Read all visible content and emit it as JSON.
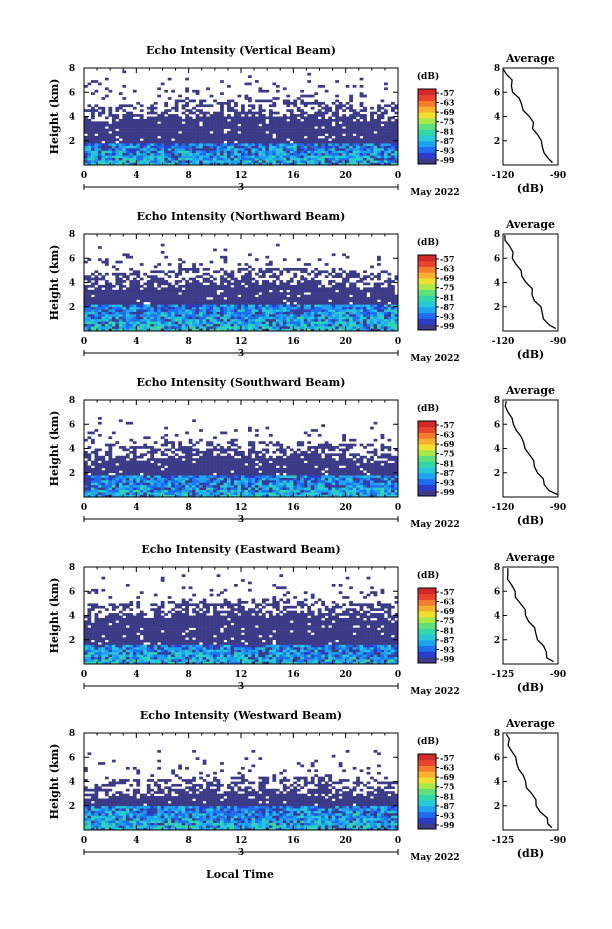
{
  "figure": {
    "xlabel": "Local Time",
    "colormap": [
      "#3b3b87",
      "#2b3cc8",
      "#1f6ef0",
      "#1ea2f2",
      "#28c8d8",
      "#33d6a8",
      "#5fe07a",
      "#a8e84a",
      "#f0e030",
      "#f9b030",
      "#f57c2c",
      "#e9452e",
      "#d12a2a"
    ]
  },
  "chart_data": [
    {
      "type": "heatmap",
      "title": "Echo Intensity (Vertical Beam)",
      "ylabel": "Height (km)",
      "yticks": [
        "2",
        "4",
        "6",
        "8"
      ],
      "ylim": [
        0,
        8
      ],
      "xticks": [
        "0",
        "4",
        "8",
        "12",
        "16",
        "20",
        "0"
      ],
      "xlim": [
        0,
        24
      ],
      "date_mark": "3",
      "date_label": "May 2022",
      "colorbar": {
        "unit": "(dB)",
        "ticks": [
          "-57",
          "-63",
          "-69",
          "-75",
          "-81",
          "-87",
          "-93",
          "-99"
        ]
      },
      "profile": {
        "title": "Average",
        "xlabel": "(dB)",
        "xticks": [
          "-120",
          "-90"
        ],
        "xlim": [
          -120,
          -90
        ],
        "yticks": [
          "2",
          "4",
          "6",
          "8"
        ],
        "ylim": [
          0,
          8
        ],
        "points": [
          [
            -93,
            0.2
          ],
          [
            -96,
            0.5
          ],
          [
            -97,
            1.0
          ],
          [
            -98,
            1.5
          ],
          [
            -100,
            2.0
          ],
          [
            -101,
            2.5
          ],
          [
            -103,
            3.0
          ],
          [
            -104,
            3.5
          ],
          [
            -106,
            4.0
          ],
          [
            -108,
            4.5
          ],
          [
            -110,
            5.0
          ],
          [
            -112,
            5.5
          ],
          [
            -114,
            6.0
          ],
          [
            -115,
            6.5
          ],
          [
            -116,
            7.0
          ],
          [
            -118,
            7.5
          ],
          [
            -119,
            7.9
          ]
        ]
      }
    },
    {
      "type": "heatmap",
      "title": "Echo Intensity (Northward Beam)",
      "ylabel": "Height (km)",
      "yticks": [
        "2",
        "4",
        "6",
        "8"
      ],
      "ylim": [
        0,
        8
      ],
      "xticks": [
        "0",
        "4",
        "8",
        "12",
        "16",
        "20",
        "0"
      ],
      "xlim": [
        0,
        24
      ],
      "date_mark": "3",
      "date_label": "May 2022",
      "colorbar": {
        "unit": "(dB)",
        "ticks": [
          "-57",
          "-63",
          "-69",
          "-75",
          "-81",
          "-87",
          "-93",
          "-99"
        ]
      },
      "profile": {
        "title": "Average",
        "xlabel": "(dB)",
        "xticks": [
          "-120",
          "-90"
        ],
        "xlim": [
          -120,
          -90
        ],
        "yticks": [
          "2",
          "4",
          "6",
          "8"
        ],
        "ylim": [
          0,
          8
        ],
        "points": [
          [
            -92,
            0.2
          ],
          [
            -95,
            0.5
          ],
          [
            -97,
            1.0
          ],
          [
            -99,
            1.5
          ],
          [
            -100,
            2.0
          ],
          [
            -102,
            2.5
          ],
          [
            -104,
            3.0
          ],
          [
            -105,
            3.5
          ],
          [
            -107,
            4.0
          ],
          [
            -109,
            4.5
          ],
          [
            -111,
            5.0
          ],
          [
            -113,
            5.5
          ],
          [
            -114,
            6.0
          ],
          [
            -115,
            6.5
          ],
          [
            -117,
            7.0
          ],
          [
            -118,
            7.5
          ],
          [
            -119,
            7.9
          ]
        ]
      }
    },
    {
      "type": "heatmap",
      "title": "Echo Intensity (Southward Beam)",
      "ylabel": "Height (km)",
      "yticks": [
        "2",
        "4",
        "6",
        "8"
      ],
      "ylim": [
        0,
        8
      ],
      "xticks": [
        "0",
        "4",
        "8",
        "12",
        "16",
        "20",
        "0"
      ],
      "xlim": [
        0,
        24
      ],
      "date_mark": "3",
      "date_label": "May 2022",
      "colorbar": {
        "unit": "(dB)",
        "ticks": [
          "-57",
          "-63",
          "-69",
          "-75",
          "-81",
          "-87",
          "-93",
          "-99"
        ]
      },
      "profile": {
        "title": "Average",
        "xlabel": "(dB)",
        "xticks": [
          "-120",
          "-90"
        ],
        "xlim": [
          -120,
          -90
        ],
        "yticks": [
          "2",
          "4",
          "6",
          "8"
        ],
        "ylim": [
          0,
          8
        ],
        "points": [
          [
            -91,
            0.2
          ],
          [
            -94,
            0.5
          ],
          [
            -97,
            1.0
          ],
          [
            -99,
            1.5
          ],
          [
            -101,
            2.0
          ],
          [
            -102,
            2.5
          ],
          [
            -104,
            3.0
          ],
          [
            -106,
            3.5
          ],
          [
            -107,
            4.0
          ],
          [
            -109,
            4.5
          ],
          [
            -111,
            5.0
          ],
          [
            -112,
            5.5
          ],
          [
            -114,
            6.0
          ],
          [
            -116,
            6.5
          ],
          [
            -117,
            7.0
          ],
          [
            -118,
            7.5
          ],
          [
            -119,
            7.9
          ]
        ]
      }
    },
    {
      "type": "heatmap",
      "title": "Echo Intensity (Eastward Beam)",
      "ylabel": "Height (km)",
      "yticks": [
        "2",
        "4",
        "6",
        "8"
      ],
      "ylim": [
        0,
        8
      ],
      "xticks": [
        "0",
        "4",
        "8",
        "12",
        "16",
        "20",
        "0"
      ],
      "xlim": [
        0,
        24
      ],
      "date_mark": "3",
      "date_label": "May 2022",
      "colorbar": {
        "unit": "(dB)",
        "ticks": [
          "-57",
          "-63",
          "-69",
          "-75",
          "-81",
          "-87",
          "-93",
          "-99"
        ]
      },
      "profile": {
        "title": "Average",
        "xlabel": "(dB)",
        "xticks": [
          "-125",
          "-90"
        ],
        "xlim": [
          -125,
          -90
        ],
        "yticks": [
          "2",
          "4",
          "6",
          "8"
        ],
        "ylim": [
          0,
          8
        ],
        "points": [
          [
            -93,
            0.2
          ],
          [
            -96,
            0.5
          ],
          [
            -98,
            1.0
          ],
          [
            -100,
            1.5
          ],
          [
            -102,
            2.0
          ],
          [
            -104,
            2.5
          ],
          [
            -106,
            3.0
          ],
          [
            -108,
            3.5
          ],
          [
            -110,
            4.0
          ],
          [
            -112,
            4.5
          ],
          [
            -114,
            5.0
          ],
          [
            -116,
            5.5
          ],
          [
            -118,
            6.0
          ],
          [
            -120,
            6.5
          ],
          [
            -121,
            7.0
          ],
          [
            -122,
            7.5
          ],
          [
            -123,
            7.9
          ]
        ]
      }
    },
    {
      "type": "heatmap",
      "title": "Echo Intensity (Westward Beam)",
      "ylabel": "Height (km)",
      "yticks": [
        "2",
        "4",
        "6",
        "8"
      ],
      "ylim": [
        0,
        8
      ],
      "xticks": [
        "0",
        "4",
        "8",
        "12",
        "16",
        "20",
        "0"
      ],
      "xlim": [
        0,
        24
      ],
      "date_mark": "3",
      "date_label": "May 2022",
      "colorbar": {
        "unit": "(dB)",
        "ticks": [
          "-57",
          "-63",
          "-69",
          "-75",
          "-81",
          "-87",
          "-93",
          "-99"
        ]
      },
      "profile": {
        "title": "Average",
        "xlabel": "(dB)",
        "xticks": [
          "-125",
          "-90"
        ],
        "xlim": [
          -125,
          -90
        ],
        "yticks": [
          "2",
          "4",
          "6",
          "8"
        ],
        "ylim": [
          0,
          8
        ],
        "points": [
          [
            -93,
            0.2
          ],
          [
            -96,
            0.5
          ],
          [
            -98,
            1.0
          ],
          [
            -101,
            1.5
          ],
          [
            -103,
            2.0
          ],
          [
            -105,
            2.5
          ],
          [
            -107,
            3.0
          ],
          [
            -109,
            3.5
          ],
          [
            -111,
            4.0
          ],
          [
            -113,
            4.5
          ],
          [
            -114,
            5.0
          ],
          [
            -116,
            5.5
          ],
          [
            -118,
            6.0
          ],
          [
            -119,
            6.5
          ],
          [
            -121,
            7.0
          ],
          [
            -122,
            7.5
          ],
          [
            -123,
            7.9
          ]
        ]
      }
    }
  ]
}
